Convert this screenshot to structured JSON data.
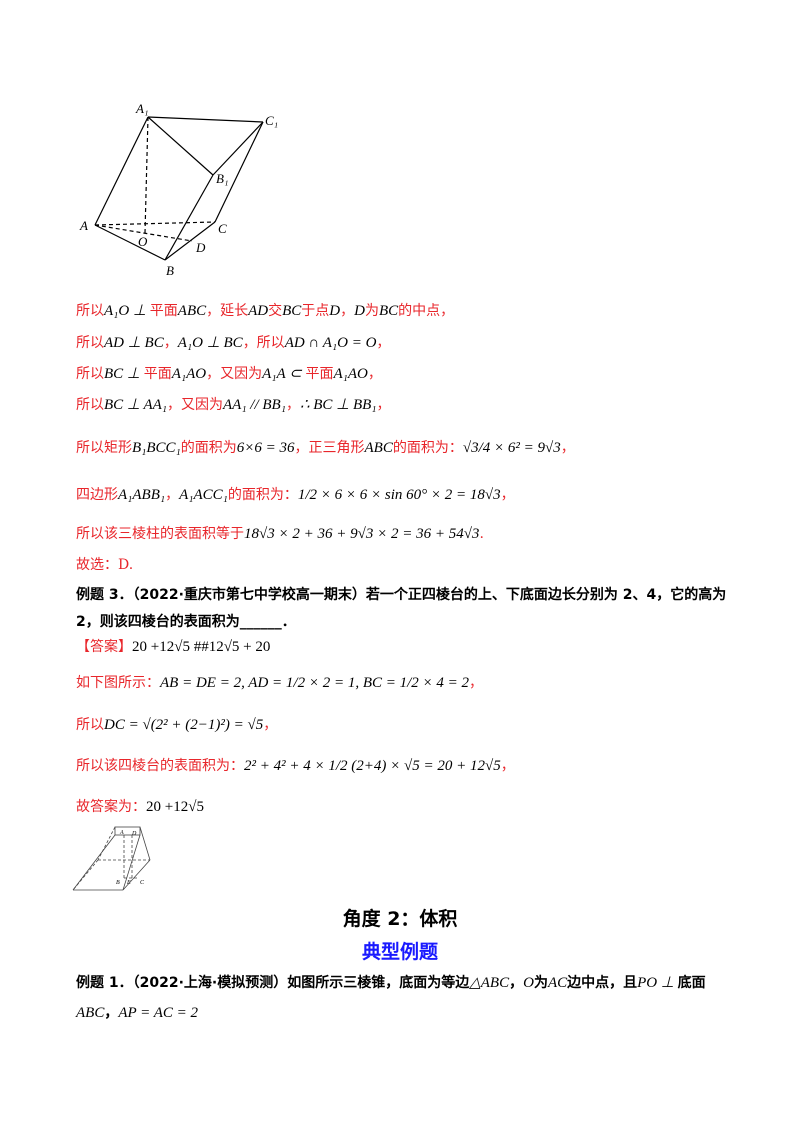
{
  "figure1": {
    "labels": {
      "A1": "A₁",
      "C1": "C₁",
      "B1": "B₁",
      "A": "A",
      "C": "C",
      "O": "O",
      "D": "D",
      "B": "B"
    }
  },
  "solution1": [
    {
      "text": "所以",
      "math": "A₁O ⊥ ",
      "text2": "平面",
      "math2": "ABC",
      "text3": "，延长",
      "math3": "AD",
      "text4": "交",
      "math4": "BC",
      "text5": "于点",
      "math5": "D",
      "text6": "，",
      "math6": "D",
      "text7": "为",
      "math7": "BC",
      "text8": "的中点，"
    },
    {
      "text": "所以",
      "math": "AD ⊥ BC",
      "text2": "，",
      "math2": "A₁O ⊥ BC",
      "text3": "，所以",
      "math3": "AD ∩ A₁O = O",
      "text4": "，"
    },
    {
      "text": "所以",
      "math": "BC ⊥ ",
      "text2": "平面",
      "math2": "A₁AO",
      "text3": "，又因为",
      "math3": "A₁A ⊂ ",
      "text4": "平面",
      "math4": "A₁AO",
      "text5": "，"
    },
    {
      "text": "所以",
      "math": "BC ⊥ AA₁",
      "text2": "，又因为",
      "math2": "AA₁ // BB₁",
      "text3": "，",
      "math3": "∴ BC ⊥ BB₁",
      "text4": "，"
    },
    {
      "text": "所以矩形",
      "math": "B₁BCC₁",
      "text2": "的面积为",
      "math2": "6×6 = 36",
      "text3": "，正三角形",
      "math3": "ABC",
      "text4": "的面积为：",
      "math4": "√3/4 × 6² = 9√3",
      "text5": "，"
    },
    {
      "text": "四边形",
      "math": "A₁ABB₁",
      "text2": "，",
      "math2": "A₁ACC₁",
      "text3": "的面积为：",
      "math3": "1/2 × 6 × 6 × sin 60° × 2 = 18√3",
      "text4": "，"
    },
    {
      "text": "所以该三棱柱的表面积等于",
      "math": "18√3 × 2 + 36 + 9√3 × 2 = 36 + 54√3",
      "text2": "."
    }
  ],
  "choice": "故选：D.",
  "example3": {
    "title": "例题 3．（2022·重庆市第七中学校高一期末）若一个正四棱台的上、下底面边长分别为 2、4，它的高为",
    "title2": "2，则该四棱台的表面积为______．",
    "answer_label": "【答案】",
    "answer": "20 +12√5 ##12√5 + 20",
    "steps": [
      {
        "text": "如下图所示：",
        "math": "AB = DE = 2, AD = 1/2 × 2 = 1, BC = 1/2 × 4 = 2",
        "end": "，"
      },
      {
        "text": "所以",
        "math": "DC = √(2² + (2−1)²) = √5",
        "end": "，"
      },
      {
        "text": "所以该四棱台的表面积为：",
        "math": "2² + 4² + 4 × 1/2 (2+4) × √5 = 20 + 12√5",
        "end": "，"
      },
      {
        "text": "故答案为：",
        "math": "20 +12√5",
        "end": ""
      }
    ],
    "figure_labels": {
      "A": "A",
      "D": "D",
      "B": "B",
      "E": "E",
      "C": "C"
    }
  },
  "section": {
    "title": "角度 2：体积",
    "subtitle": "典型例题"
  },
  "example1": {
    "line1": {
      "a": "例题 1．（2022·上海·模拟预测）如图所示三棱锥，底面为等边",
      "m1": "△ABC",
      "b": "，",
      "m2": "O",
      "c": "为",
      "m3": "AC",
      "d": "边中点，且",
      "m4": "PO ⊥ ",
      "e": "底面"
    },
    "line2": {
      "m1": "ABC",
      "b": "，",
      "m2": "AP = AC = 2"
    }
  }
}
